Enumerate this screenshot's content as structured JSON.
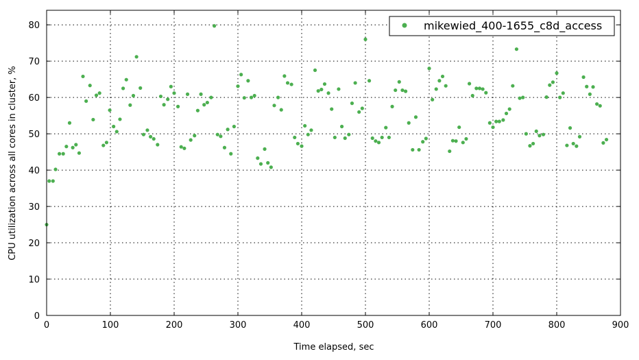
{
  "chart_data": {
    "type": "scatter",
    "xlabel": "Time elapsed, sec",
    "ylabel": "CPU utilization across all cores in cluster, %",
    "xlim": [
      0,
      900
    ],
    "ylim": [
      0,
      84
    ],
    "xticks": [
      0,
      100,
      200,
      300,
      400,
      500,
      600,
      700,
      800,
      900
    ],
    "yticks": [
      0,
      10,
      20,
      30,
      40,
      50,
      60,
      70,
      80
    ],
    "grid": true,
    "legend_position": "top-right",
    "series": [
      {
        "name": "mikewied_400-1655_c8d_access",
        "color": "#4caf50",
        "points": [
          [
            0,
            25
          ],
          [
            4,
            37
          ],
          [
            10,
            37
          ],
          [
            14,
            40.2
          ],
          [
            20,
            44.5
          ],
          [
            26,
            44.5
          ],
          [
            31,
            46.5
          ],
          [
            36,
            53
          ],
          [
            41,
            46.2
          ],
          [
            46,
            47
          ],
          [
            51,
            44.7
          ],
          [
            57,
            65.8
          ],
          [
            62,
            59
          ],
          [
            68,
            63.3
          ],
          [
            73,
            53.9
          ],
          [
            78,
            60.6
          ],
          [
            83,
            61.2
          ],
          [
            89,
            46.8
          ],
          [
            94,
            47.6
          ],
          [
            99,
            56.5
          ],
          [
            105,
            52
          ],
          [
            110,
            50.6
          ],
          [
            115,
            54
          ],
          [
            120,
            62.5
          ],
          [
            125,
            64.9
          ],
          [
            131,
            57.9
          ],
          [
            136,
            60.5
          ],
          [
            141,
            71.2
          ],
          [
            147,
            62.6
          ],
          [
            152,
            49.8
          ],
          [
            158,
            51
          ],
          [
            163,
            49.2
          ],
          [
            168,
            48.6
          ],
          [
            174,
            47
          ],
          [
            179,
            60.3
          ],
          [
            184,
            58
          ],
          [
            190,
            59.5
          ],
          [
            195,
            63
          ],
          [
            200,
            61.2
          ],
          [
            206,
            57.5
          ],
          [
            211,
            46.4
          ],
          [
            216,
            46
          ],
          [
            221,
            60.9
          ],
          [
            226,
            48.3
          ],
          [
            232,
            49.5
          ],
          [
            237,
            56.4
          ],
          [
            242,
            60.9
          ],
          [
            247,
            58
          ],
          [
            252,
            58.6
          ],
          [
            258,
            60
          ],
          [
            263,
            79.7
          ],
          [
            268,
            49.8
          ],
          [
            273,
            49.3
          ],
          [
            279,
            46.2
          ],
          [
            284,
            51.2
          ],
          [
            289,
            44.5
          ],
          [
            294,
            52
          ],
          [
            300,
            63.1
          ],
          [
            305,
            66.3
          ],
          [
            310,
            59.9
          ],
          [
            316,
            64.6
          ],
          [
            321,
            60
          ],
          [
            326,
            60.5
          ],
          [
            331,
            43.3
          ],
          [
            336,
            41.7
          ],
          [
            342,
            45.8
          ],
          [
            347,
            42
          ],
          [
            352,
            40.8
          ],
          [
            357,
            57.8
          ],
          [
            363,
            60
          ],
          [
            368,
            56.6
          ],
          [
            373,
            65.9
          ],
          [
            378,
            64
          ],
          [
            384,
            63.6
          ],
          [
            389,
            49
          ],
          [
            394,
            47.3
          ],
          [
            400,
            46.6
          ],
          [
            405,
            52.2
          ],
          [
            410,
            49.8
          ],
          [
            415,
            51
          ],
          [
            421,
            67.5
          ],
          [
            426,
            61.8
          ],
          [
            431,
            62.2
          ],
          [
            436,
            63.7
          ],
          [
            442,
            61.2
          ],
          [
            447,
            56.8
          ],
          [
            452,
            49
          ],
          [
            458,
            62.3
          ],
          [
            463,
            52
          ],
          [
            468,
            48.8
          ],
          [
            474,
            49.8
          ],
          [
            479,
            58.4
          ],
          [
            484,
            64
          ],
          [
            490,
            56
          ],
          [
            495,
            57
          ],
          [
            500,
            76
          ],
          [
            506,
            64.6
          ],
          [
            511,
            48.8
          ],
          [
            516,
            48
          ],
          [
            521,
            47.6
          ],
          [
            526,
            49
          ],
          [
            532,
            51.7
          ],
          [
            537,
            49
          ],
          [
            542,
            57.5
          ],
          [
            547,
            62
          ],
          [
            553,
            64.3
          ],
          [
            558,
            62
          ],
          [
            563,
            61.7
          ],
          [
            568,
            53
          ],
          [
            574,
            45.6
          ],
          [
            579,
            54.6
          ],
          [
            584,
            45.6
          ],
          [
            590,
            47.8
          ],
          [
            595,
            48.7
          ],
          [
            600,
            68
          ],
          [
            605,
            59.4
          ],
          [
            611,
            62.3
          ],
          [
            616,
            64.6
          ],
          [
            621,
            65.8
          ],
          [
            626,
            63.2
          ],
          [
            632,
            45.2
          ],
          [
            637,
            48.1
          ],
          [
            642,
            48
          ],
          [
            647,
            51.8
          ],
          [
            653,
            47.6
          ],
          [
            658,
            48.6
          ],
          [
            663,
            63.8
          ],
          [
            668,
            60.5
          ],
          [
            674,
            62.5
          ],
          [
            679,
            62.5
          ],
          [
            684,
            62.3
          ],
          [
            689,
            61.3
          ],
          [
            695,
            53
          ],
          [
            700,
            51.8
          ],
          [
            705,
            53.4
          ],
          [
            710,
            53.4
          ],
          [
            716,
            53.8
          ],
          [
            721,
            55.6
          ],
          [
            726,
            56.8
          ],
          [
            731,
            63.2
          ],
          [
            737,
            73.3
          ],
          [
            742,
            59.8
          ],
          [
            747,
            60
          ],
          [
            752,
            50
          ],
          [
            758,
            46.7
          ],
          [
            763,
            47.3
          ],
          [
            768,
            50.7
          ],
          [
            773,
            49.5
          ],
          [
            779,
            49.8
          ],
          [
            784,
            60.1
          ],
          [
            789,
            63.4
          ],
          [
            794,
            64.2
          ],
          [
            800,
            66.7
          ],
          [
            805,
            60
          ],
          [
            810,
            61.2
          ],
          [
            816,
            46.8
          ],
          [
            821,
            51.6
          ],
          [
            826,
            47.3
          ],
          [
            831,
            46.6
          ],
          [
            836,
            49.2
          ],
          [
            842,
            65.6
          ],
          [
            847,
            63
          ],
          [
            852,
            60.9
          ],
          [
            857,
            62.9
          ],
          [
            863,
            58.2
          ],
          [
            868,
            57.7
          ],
          [
            873,
            47.5
          ],
          [
            878,
            48.4
          ]
        ]
      }
    ]
  }
}
